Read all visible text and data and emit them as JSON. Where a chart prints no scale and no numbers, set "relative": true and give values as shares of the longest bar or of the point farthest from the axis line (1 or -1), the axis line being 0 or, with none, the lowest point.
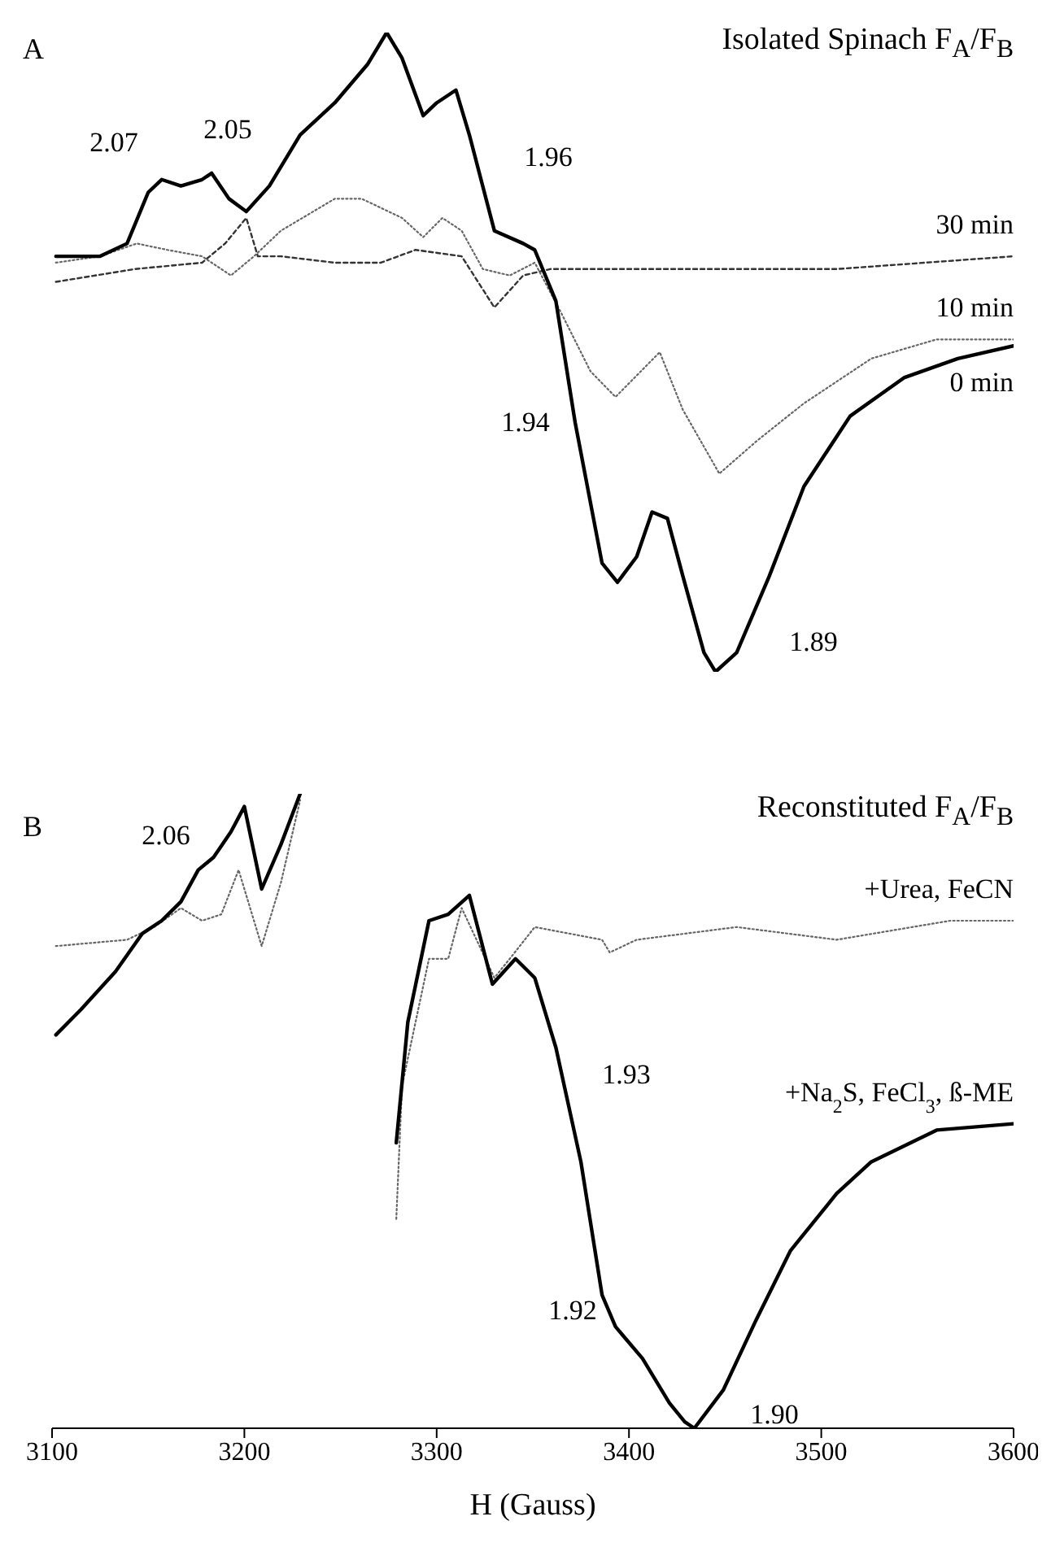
{
  "chart_data": [
    {
      "type": "line",
      "title": "Isolated Spinach F$_{A}$/F$_{B}$",
      "relative": true,
      "xlim": [
        3100,
        3600
      ],
      "tick_labels": false,
      "annotations": [
        "A",
        "2.07",
        "2.05",
        "1.96",
        "1.94",
        "1.89"
      ],
      "series": [
        {
          "name": "30 min",
          "color": "#333333",
          "line_style": "dashed",
          "x": [
            3102,
            3143,
            3178,
            3190,
            3201,
            3207,
            3219,
            3247,
            3271,
            3289,
            3313,
            3330,
            3345,
            3359,
            3421,
            3508,
            3600
          ],
          "values": [
            0.61,
            0.63,
            0.64,
            0.67,
            0.71,
            0.65,
            0.65,
            0.64,
            0.64,
            0.66,
            0.65,
            0.57,
            0.62,
            0.63,
            0.63,
            0.63,
            0.65
          ]
        },
        {
          "name": "10 min",
          "color": "#666666",
          "line_style": "dotted",
          "x": [
            3102,
            3125,
            3144,
            3160,
            3178,
            3193,
            3205,
            3219,
            3247,
            3261,
            3282,
            3293,
            3303,
            3313,
            3324,
            3338,
            3351,
            3365,
            3380,
            3393,
            3416,
            3428,
            3447,
            3466,
            3491,
            3526,
            3560,
            3600
          ],
          "values": [
            0.64,
            0.65,
            0.67,
            0.66,
            0.65,
            0.62,
            0.65,
            0.69,
            0.74,
            0.74,
            0.71,
            0.68,
            0.71,
            0.69,
            0.63,
            0.62,
            0.64,
            0.56,
            0.47,
            0.43,
            0.5,
            0.41,
            0.31,
            0.36,
            0.42,
            0.49,
            0.52,
            0.52
          ]
        },
        {
          "name": "0 min",
          "color": "#000000",
          "line_style": "solid",
          "x": [
            3102,
            3125,
            3139,
            3150,
            3157,
            3167,
            3178,
            3183,
            3192,
            3201,
            3213,
            3229,
            3247,
            3264,
            3274,
            3282,
            3293,
            3300,
            3310,
            3317,
            3330,
            3345,
            3351,
            3362,
            3372,
            3386,
            3394,
            3404,
            3412,
            3420,
            3428,
            3439,
            3445,
            3456,
            3473,
            3491,
            3515,
            3543,
            3571,
            3600
          ],
          "values": [
            0.65,
            0.65,
            0.67,
            0.75,
            0.77,
            0.76,
            0.77,
            0.78,
            0.74,
            0.72,
            0.76,
            0.84,
            0.89,
            0.95,
            1,
            0.96,
            0.87,
            0.89,
            0.91,
            0.84,
            0.69,
            0.67,
            0.66,
            0.58,
            0.39,
            0.17,
            0.14,
            0.18,
            0.25,
            0.24,
            0.15,
            0.03,
            0,
            0.03,
            0.15,
            0.29,
            0.4,
            0.46,
            0.49,
            0.51
          ]
        }
      ]
    },
    {
      "type": "line",
      "title": "Reconstituted F$_{A}$/F$_{B}$",
      "relative": true,
      "xlabel": "H (Gauss)",
      "xlim": [
        3100,
        3600
      ],
      "xticks": [
        3100,
        3200,
        3300,
        3400,
        3500,
        3600
      ],
      "annotations": [
        "B",
        "2.06",
        "1.93",
        "1.92",
        "1.90"
      ],
      "series": [
        {
          "name": "+Urea, FeCN",
          "color": "#666666",
          "line_style": "dotted",
          "x": [
            3102,
            3139,
            3153,
            3167,
            3178,
            3188,
            3197,
            3209,
            3219,
            3229,
            3250,
            3279,
            3282,
            3296,
            3306,
            3313,
            3330,
            3338,
            3351,
            3386,
            3390,
            3404,
            3456,
            3508,
            3567,
            3600
          ],
          "values": [
            0.76,
            0.77,
            0.79,
            0.82,
            0.8,
            0.81,
            0.88,
            0.76,
            0.86,
            0.99,
            null,
            0.33,
            0.54,
            0.74,
            0.74,
            0.82,
            0.71,
            0.74,
            0.79,
            0.77,
            0.75,
            0.77,
            0.79,
            0.77,
            0.8,
            0.8
          ]
        },
        {
          "name": "+Na$_{2}$S, FeCl$_{3}$, ß-ME",
          "color": "#000000",
          "line_style": "solid",
          "x": [
            3102,
            3115,
            3133,
            3147,
            3157,
            3167,
            3176,
            3184,
            3193,
            3200,
            3209,
            3219,
            3229,
            3250,
            3279,
            3285,
            3296,
            3306,
            3317,
            3329,
            3341,
            3351,
            3362,
            3375,
            3386,
            3393,
            3407,
            3421,
            3429,
            3434,
            3449,
            3466,
            3484,
            3508,
            3526,
            3560,
            3600
          ],
          "values": [
            0.62,
            0.66,
            0.72,
            0.78,
            0.8,
            0.83,
            0.88,
            0.9,
            0.94,
            0.98,
            0.85,
            0.92,
            1,
            null,
            0.45,
            0.64,
            0.8,
            0.81,
            0.84,
            0.7,
            0.74,
            0.71,
            0.6,
            0.42,
            0.21,
            0.16,
            0.11,
            0.04,
            0.01,
            0,
            0.06,
            0.17,
            0.28,
            0.37,
            0.42,
            0.47,
            0.48
          ]
        }
      ]
    }
  ]
}
